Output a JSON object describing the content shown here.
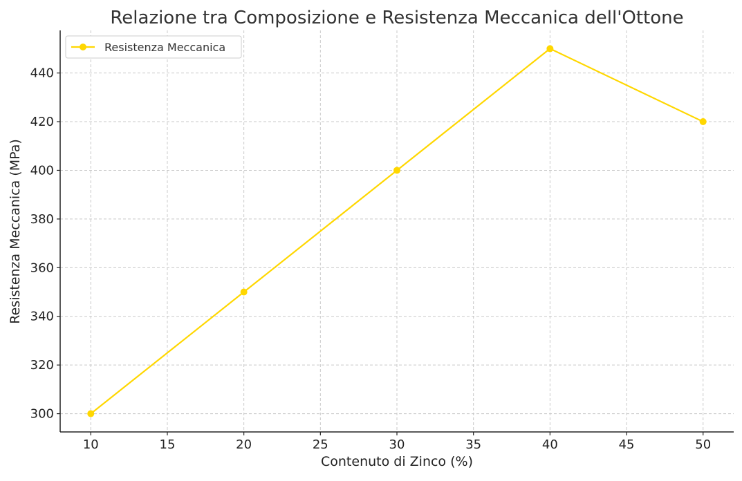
{
  "chart_data": {
    "type": "line",
    "title": "Relazione tra Composizione e Resistenza Meccanica dell'Ottone",
    "xlabel": "Contenuto di Zinco (%)",
    "ylabel": "Resistenza Meccanica (MPa)",
    "x": [
      10,
      20,
      30,
      40,
      50
    ],
    "series": [
      {
        "name": "Resistenza Meccanica",
        "values": [
          300,
          350,
          400,
          450,
          420
        ],
        "color": "#FFD700",
        "marker": "circle"
      }
    ],
    "xlim": [
      8,
      52
    ],
    "ylim": [
      292.5,
      457.5
    ],
    "xticks": [
      10,
      15,
      20,
      25,
      30,
      35,
      40,
      45,
      50
    ],
    "yticks": [
      300,
      320,
      340,
      360,
      380,
      400,
      420,
      440
    ],
    "grid": true,
    "legend_position": "top-left"
  }
}
